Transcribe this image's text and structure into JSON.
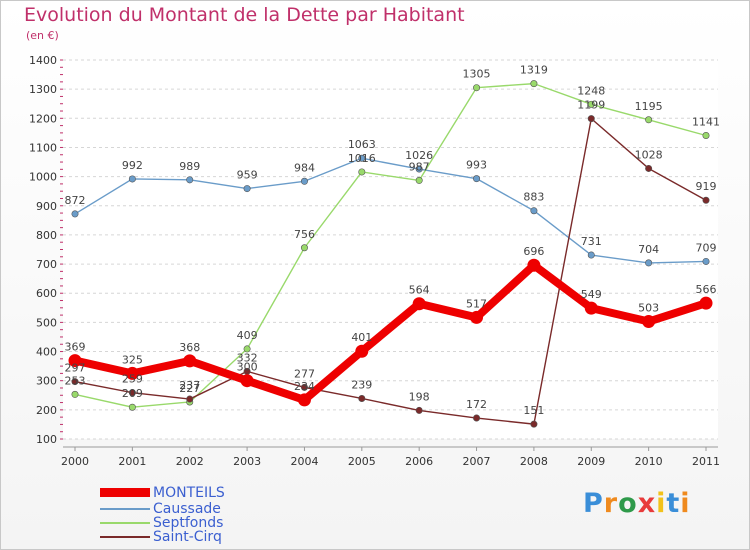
{
  "header": {
    "title": "Evolution du Montant de la Dette par Habitant",
    "unit": "(en €)"
  },
  "chart_data": {
    "type": "line",
    "x": [
      "2000",
      "2001",
      "2002",
      "2003",
      "2004",
      "2005",
      "2006",
      "2007",
      "2008",
      "2009",
      "2010",
      "2011"
    ],
    "ylim": [
      100,
      1400
    ],
    "yticks": [
      100,
      200,
      300,
      400,
      500,
      600,
      700,
      800,
      900,
      1000,
      1100,
      1200,
      1300,
      1400
    ],
    "grid": "horizontal-dashed",
    "legend_position": "bottom-left",
    "series": [
      {
        "name": "MONTEILS",
        "color": "#ee0000",
        "values": [
          369,
          325,
          368,
          300,
          234,
          401,
          564,
          517,
          696,
          549,
          503,
          566
        ]
      },
      {
        "name": "Caussade",
        "color": "#6a9cc9",
        "values": [
          872,
          992,
          989,
          959,
          984,
          1063,
          1026,
          993,
          883,
          731,
          704,
          709
        ]
      },
      {
        "name": "Septfonds",
        "color": "#99d96b",
        "values": [
          253,
          209,
          227,
          409,
          756,
          1016,
          987,
          1305,
          1319,
          1248,
          1195,
          1141
        ]
      },
      {
        "name": "Saint-Cirq",
        "color": "#7a2a2a",
        "values": [
          297,
          259,
          237,
          332,
          277,
          239,
          198,
          172,
          151,
          1199,
          1028,
          919
        ]
      }
    ]
  },
  "logo": {
    "text": "Proxiti",
    "colors": [
      "#3a8ed8",
      "#ef8a1e",
      "#2e9a4a",
      "#e83b3b",
      "#f2c21b",
      "#3a8ed8",
      "#ef8a1e"
    ]
  }
}
